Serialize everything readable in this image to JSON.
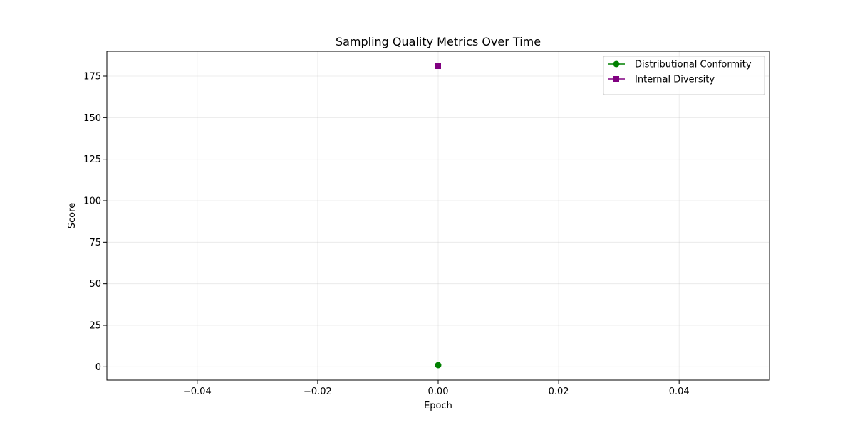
{
  "chart_data": {
    "type": "line",
    "title": "Sampling Quality Metrics Over Time",
    "xlabel": "Epoch",
    "ylabel": "Score",
    "xlim": [
      -0.055,
      0.055
    ],
    "ylim": [
      -8,
      190
    ],
    "xticks": [
      -0.04,
      -0.02,
      0.0,
      0.02,
      0.04
    ],
    "xtick_labels": [
      "−0.04",
      "−0.02",
      "0.00",
      "0.02",
      "0.04"
    ],
    "yticks": [
      0,
      25,
      50,
      75,
      100,
      125,
      150,
      175
    ],
    "ytick_labels": [
      "0",
      "25",
      "50",
      "75",
      "100",
      "125",
      "150",
      "175"
    ],
    "grid": true,
    "legend_position": "top-right",
    "series": [
      {
        "name": "Distributional Conformity",
        "color": "#008000",
        "marker": "circle",
        "x": [
          0
        ],
        "y": [
          1
        ]
      },
      {
        "name": "Internal Diversity",
        "color": "#800080",
        "marker": "square",
        "x": [
          0
        ],
        "y": [
          181
        ]
      }
    ]
  }
}
